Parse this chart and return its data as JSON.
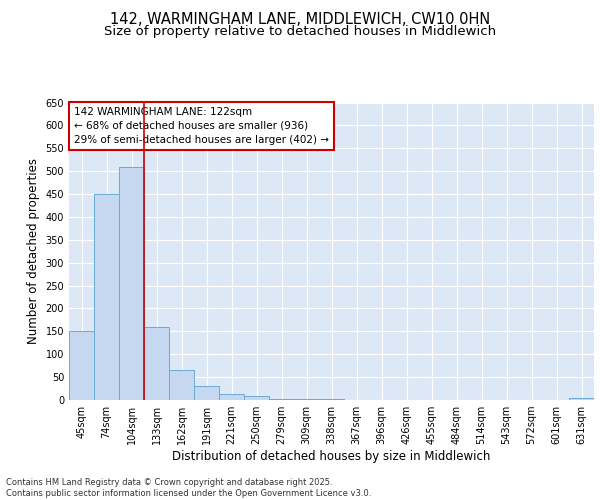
{
  "title1": "142, WARMINGHAM LANE, MIDDLEWICH, CW10 0HN",
  "title2": "Size of property relative to detached houses in Middlewich",
  "xlabel": "Distribution of detached houses by size in Middlewich",
  "ylabel": "Number of detached properties",
  "categories": [
    "45sqm",
    "74sqm",
    "104sqm",
    "133sqm",
    "162sqm",
    "191sqm",
    "221sqm",
    "250sqm",
    "279sqm",
    "309sqm",
    "338sqm",
    "367sqm",
    "396sqm",
    "426sqm",
    "455sqm",
    "484sqm",
    "514sqm",
    "543sqm",
    "572sqm",
    "601sqm",
    "631sqm"
  ],
  "values": [
    150,
    451,
    508,
    160,
    65,
    30,
    13,
    8,
    2,
    2,
    2,
    0,
    0,
    0,
    0,
    0,
    0,
    0,
    0,
    0,
    4
  ],
  "bar_color": "#c5d8f0",
  "bar_edge_color": "#6aaad4",
  "vline_x": 2.5,
  "vline_color": "#cc0000",
  "annotation_text": "142 WARMINGHAM LANE: 122sqm\n← 68% of detached houses are smaller (936)\n29% of semi-detached houses are larger (402) →",
  "annotation_box_color": "#ffffff",
  "annotation_box_edge_color": "#cc0000",
  "ylim": [
    0,
    650
  ],
  "yticks": [
    0,
    50,
    100,
    150,
    200,
    250,
    300,
    350,
    400,
    450,
    500,
    550,
    600,
    650
  ],
  "background_color": "#dce8f5",
  "grid_color": "#ffffff",
  "footer_text": "Contains HM Land Registry data © Crown copyright and database right 2025.\nContains public sector information licensed under the Open Government Licence v3.0.",
  "title_fontsize": 10.5,
  "subtitle_fontsize": 9.5,
  "axis_label_fontsize": 8.5,
  "tick_fontsize": 7,
  "annotation_fontsize": 7.5,
  "footer_fontsize": 6
}
